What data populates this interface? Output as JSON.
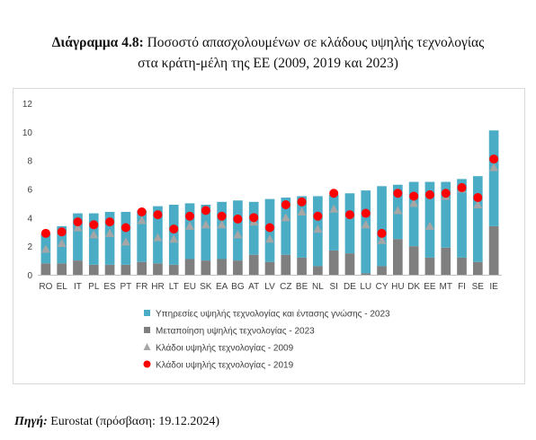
{
  "header": {
    "title_bold": "Διάγραμμα 4.8:",
    "title_rest": " Ποσοστό απασχολουμένων σε κλάδους υψηλής τεχνολογίας",
    "title_line2": "στα κράτη-μέλη της ΕΕ (2009, 2019 και 2023)"
  },
  "source": {
    "label": "Πηγή:",
    "text": " Eurostat (πρόσβαση: 19.12.2024)"
  },
  "colors": {
    "services": "#4bacc6",
    "manufacturing": "#7f7f7f",
    "total_2009": "#a6a6a6",
    "total_2019": "#ff0000"
  },
  "chart_data": {
    "type": "bar",
    "stacked": true,
    "categories": [
      "RO",
      "EL",
      "IT",
      "PL",
      "ES",
      "PT",
      "FR",
      "HR",
      "LT",
      "EU",
      "SK",
      "EA",
      "BG",
      "AT",
      "LV",
      "CZ",
      "BE",
      "NL",
      "SI",
      "DE",
      "LU",
      "CY",
      "HU",
      "DK",
      "EE",
      "MT",
      "FI",
      "SE",
      "IE"
    ],
    "series": [
      {
        "name": "Μεταποίηση υψηλής τεχνολογίας - 2023",
        "kind": "bar",
        "values": [
          0.8,
          0.8,
          1.0,
          0.7,
          0.7,
          0.7,
          0.9,
          0.8,
          0.7,
          1.1,
          1.0,
          1.1,
          1.0,
          1.4,
          0.9,
          1.4,
          1.2,
          0.6,
          1.7,
          1.5,
          0.1,
          0.6,
          2.5,
          2.0,
          1.2,
          1.9,
          1.2,
          0.9,
          3.4
        ]
      },
      {
        "name": "Υπηρεσίες υψηλής τεχνολογίας και έντασης γνώσης - 2023",
        "kind": "bar",
        "values": [
          2.1,
          2.6,
          3.3,
          3.6,
          3.7,
          3.7,
          3.6,
          4.0,
          4.2,
          3.9,
          3.9,
          4.0,
          4.2,
          3.7,
          4.4,
          4.0,
          4.3,
          4.9,
          3.9,
          4.2,
          5.8,
          5.6,
          3.8,
          4.5,
          5.3,
          4.6,
          5.5,
          6.0,
          6.7
        ]
      },
      {
        "name": "Κλάδοι υψηλής τεχνολογίας - 2009",
        "kind": "triangle",
        "values": [
          1.8,
          2.2,
          3.3,
          2.8,
          2.9,
          2.3,
          3.8,
          2.6,
          2.5,
          3.4,
          3.5,
          3.5,
          2.8,
          3.7,
          2.5,
          4.0,
          4.4,
          3.2,
          4.6,
          4.2,
          3.5,
          2.4,
          4.5,
          5.0,
          3.4,
          5.5,
          6.0,
          4.9,
          7.5
        ]
      },
      {
        "name": "Κλάδοι υψηλής τεχνολογίας - 2019",
        "kind": "dot",
        "values": [
          2.9,
          3.0,
          3.7,
          3.5,
          3.7,
          3.3,
          4.4,
          4.2,
          3.2,
          4.1,
          4.5,
          4.1,
          3.9,
          4.0,
          3.3,
          4.9,
          5.1,
          4.1,
          5.7,
          4.2,
          4.3,
          2.9,
          5.7,
          5.5,
          5.6,
          5.7,
          6.1,
          5.4,
          8.1
        ]
      }
    ],
    "ylim": [
      0,
      12
    ],
    "yticks": [
      0,
      2,
      4,
      6,
      8,
      10,
      12
    ],
    "grid": false,
    "legend_position": "bottom",
    "legend": [
      {
        "label": "Υπηρεσίες υψηλής τεχνολογίας και έντασης γνώσης - 2023",
        "marker": "square",
        "color_key": "services"
      },
      {
        "label": "Μεταποίηση υψηλής τεχνολογίας - 2023",
        "marker": "square",
        "color_key": "manufacturing"
      },
      {
        "label": "Κλάδοι υψηλής τεχνολογίας - 2009",
        "marker": "triangle",
        "color_key": "total_2009"
      },
      {
        "label": "Κλάδοι υψηλής τεχνολογίας - 2019",
        "marker": "circle",
        "color_key": "total_2019"
      }
    ]
  }
}
